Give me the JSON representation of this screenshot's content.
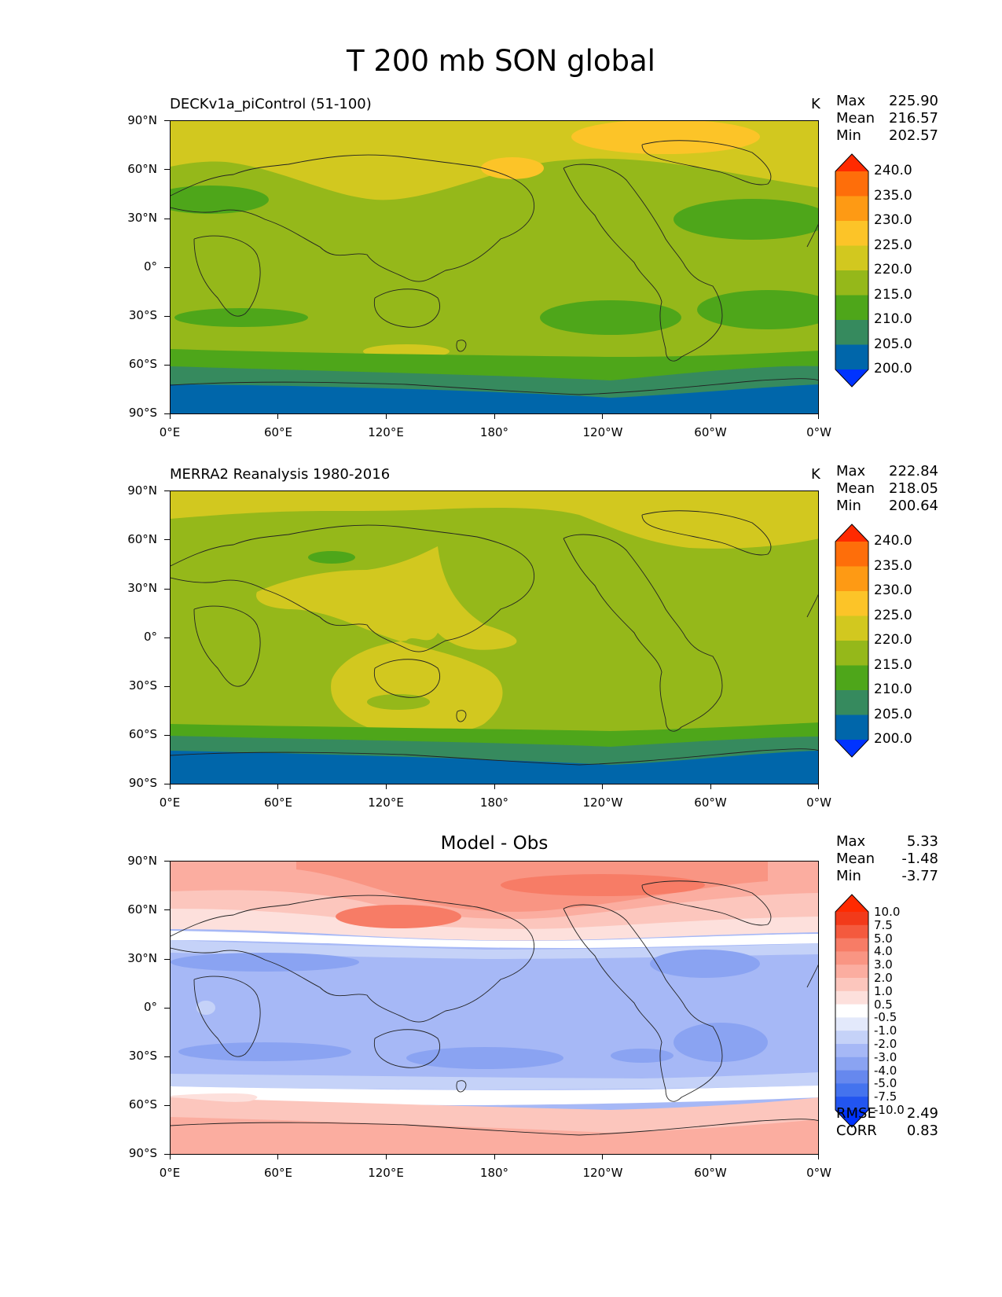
{
  "figure_title": "T 200 mb SON global",
  "x_ticks": [
    "0°E",
    "60°E",
    "120°E",
    "180°",
    "120°W",
    "60°W",
    "0°W"
  ],
  "y_ticks": [
    "90°N",
    "60°N",
    "30°N",
    "0°",
    "30°S",
    "60°S",
    "90°S"
  ],
  "panels": [
    {
      "title": "DECKv1a_piControl (51-100)",
      "units": "K",
      "stats": {
        "max_label": "Max",
        "max": "225.90",
        "mean_label": "Mean",
        "mean": "216.57",
        "min_label": "Min",
        "min": "202.57"
      }
    },
    {
      "title": "MERRA2 Reanalysis 1980-2016",
      "units": "K",
      "stats": {
        "max_label": "Max",
        "max": "222.84",
        "mean_label": "Mean",
        "mean": "218.05",
        "min_label": "Min",
        "min": "200.64"
      }
    },
    {
      "title": "Model - Obs",
      "units": "",
      "stats": {
        "max_label": "Max",
        "max": "5.33",
        "mean_label": "Mean",
        "mean": "-1.48",
        "min_label": "Min",
        "min": "-3.77"
      },
      "errors": {
        "rmse_label": "RMSE",
        "rmse": "2.49",
        "corr_label": "CORR",
        "corr": "0.83"
      }
    }
  ],
  "colorbar_abs": {
    "labels": [
      "240.0",
      "235.0",
      "230.0",
      "225.0",
      "220.0",
      "215.0",
      "210.0",
      "205.0",
      "200.0"
    ],
    "colors": [
      "#0033ff",
      "#0066aa",
      "#368a5e",
      "#4ea61a",
      "#95b81a",
      "#d2c81f",
      "#fcc428",
      "#fe9a14",
      "#fe6e0a",
      "#ff2a00"
    ]
  },
  "colorbar_diff": {
    "labels": [
      "10.0",
      "7.5",
      "5.0",
      "4.0",
      "3.0",
      "2.0",
      "1.0",
      "0.5",
      "-0.5",
      "-1.0",
      "-2.0",
      "-3.0",
      "-4.0",
      "-5.0",
      "-7.5",
      "-10.0"
    ],
    "colors": [
      "#0033ff",
      "#2255f0",
      "#4473ee",
      "#6688ee",
      "#8aa3f2",
      "#a6b8f6",
      "#c5d2f8",
      "#e3e9fb",
      "#ffffff",
      "#fde0dc",
      "#fcc6bd",
      "#fbada0",
      "#f99583",
      "#f77c66",
      "#f45a3e",
      "#f23a1a",
      "#ff2a00"
    ]
  },
  "chart_data": [
    {
      "type": "heatmap",
      "title": "DECKv1a_piControl (51-100)",
      "variable": "T 200 mb SON global",
      "units": "K",
      "x_ticks": [
        "0°E",
        "60°E",
        "120°E",
        "180°",
        "120°W",
        "60°W",
        "0°W"
      ],
      "y_ticks": [
        "90°N",
        "60°N",
        "30°N",
        "0°",
        "30°S",
        "60°S",
        "90°S"
      ],
      "levels": [
        200.0,
        205.0,
        210.0,
        215.0,
        220.0,
        225.0,
        230.0,
        235.0,
        240.0
      ],
      "max": 225.9,
      "mean": 216.57,
      "min": 202.57
    },
    {
      "type": "heatmap",
      "title": "MERRA2 Reanalysis 1980-2016",
      "variable": "T 200 mb SON global",
      "units": "K",
      "x_ticks": [
        "0°E",
        "60°E",
        "120°E",
        "180°",
        "120°W",
        "60°W",
        "0°W"
      ],
      "y_ticks": [
        "90°N",
        "60°N",
        "30°N",
        "0°",
        "30°S",
        "60°S",
        "90°S"
      ],
      "levels": [
        200.0,
        205.0,
        210.0,
        215.0,
        220.0,
        225.0,
        230.0,
        235.0,
        240.0
      ],
      "max": 222.84,
      "mean": 218.05,
      "min": 200.64
    },
    {
      "type": "heatmap",
      "title": "Model - Obs",
      "variable": "T 200 mb SON global",
      "x_ticks": [
        "0°E",
        "60°E",
        "120°E",
        "180°",
        "120°W",
        "60°W",
        "0°W"
      ],
      "y_ticks": [
        "90°N",
        "60°N",
        "30°N",
        "0°",
        "30°S",
        "60°S",
        "90°S"
      ],
      "levels": [
        -10.0,
        -7.5,
        -5.0,
        -4.0,
        -3.0,
        -2.0,
        -1.0,
        -0.5,
        0.5,
        1.0,
        2.0,
        3.0,
        4.0,
        5.0,
        7.5,
        10.0
      ],
      "max": 5.33,
      "mean": -1.48,
      "min": -3.77,
      "rmse": 2.49,
      "corr": 0.83
    }
  ]
}
